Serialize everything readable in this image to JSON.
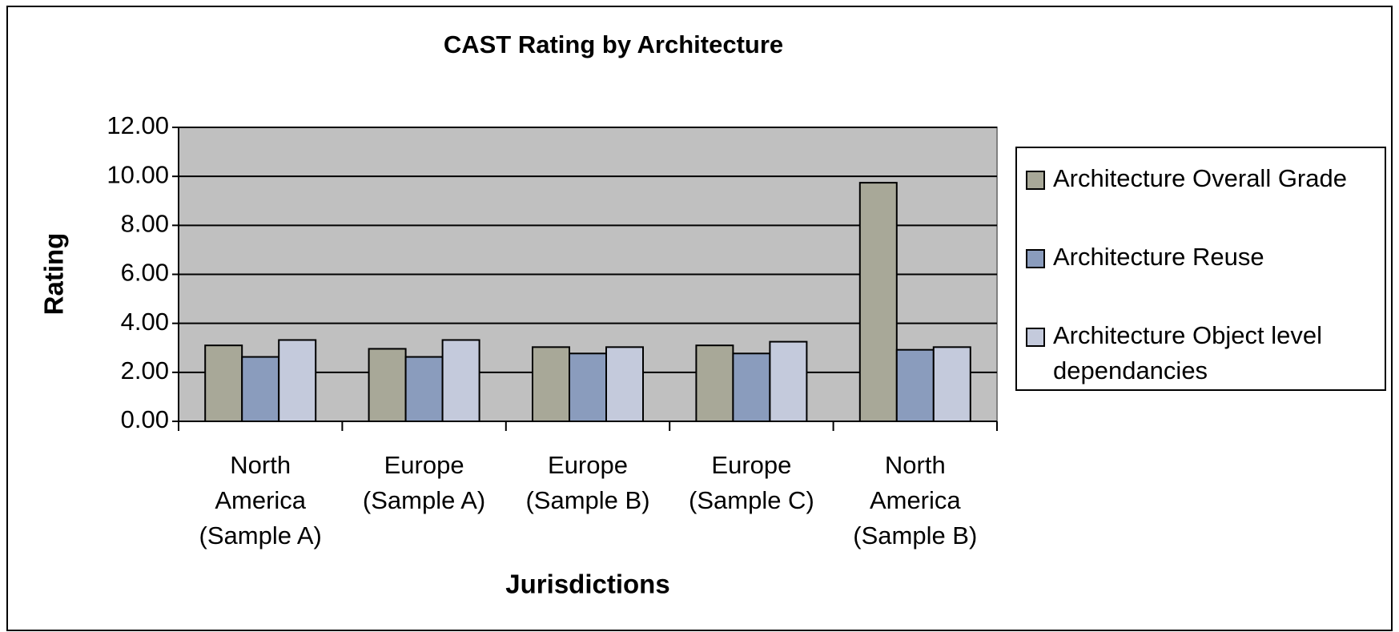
{
  "chart_data": {
    "type": "bar",
    "title": "CAST Rating by Architecture",
    "x_label": "Jurisdictions",
    "y_label": "Rating",
    "categories": [
      "North America (Sample A)",
      "Europe (Sample A)",
      "Europe (Sample B)",
      "Europe (Sample C)",
      "North America (Sample B)"
    ],
    "series": [
      {
        "name": "Architecture Overall Grade",
        "color": "#a8a898",
        "values": [
          3.1,
          2.96,
          3.03,
          3.1,
          9.74
        ]
      },
      {
        "name": "Architecture Reuse",
        "color": "#8a9cbd",
        "values": [
          2.63,
          2.63,
          2.77,
          2.77,
          2.92
        ]
      },
      {
        "name": "Architecture Object level dependancies",
        "color": "#c4cadc",
        "values": [
          3.32,
          3.32,
          3.03,
          3.25,
          3.03
        ]
      }
    ],
    "ylim": [
      0,
      12
    ],
    "yticks": [
      {
        "value": 0,
        "label": "0.00"
      },
      {
        "value": 2,
        "label": "2.00"
      },
      {
        "value": 4,
        "label": "4.00"
      },
      {
        "value": 6,
        "label": "6.00"
      },
      {
        "value": 8,
        "label": "8.00"
      },
      {
        "value": 10,
        "label": "10.00"
      },
      {
        "value": 12,
        "label": "12.00"
      }
    ],
    "grid": true,
    "legend": "right"
  }
}
